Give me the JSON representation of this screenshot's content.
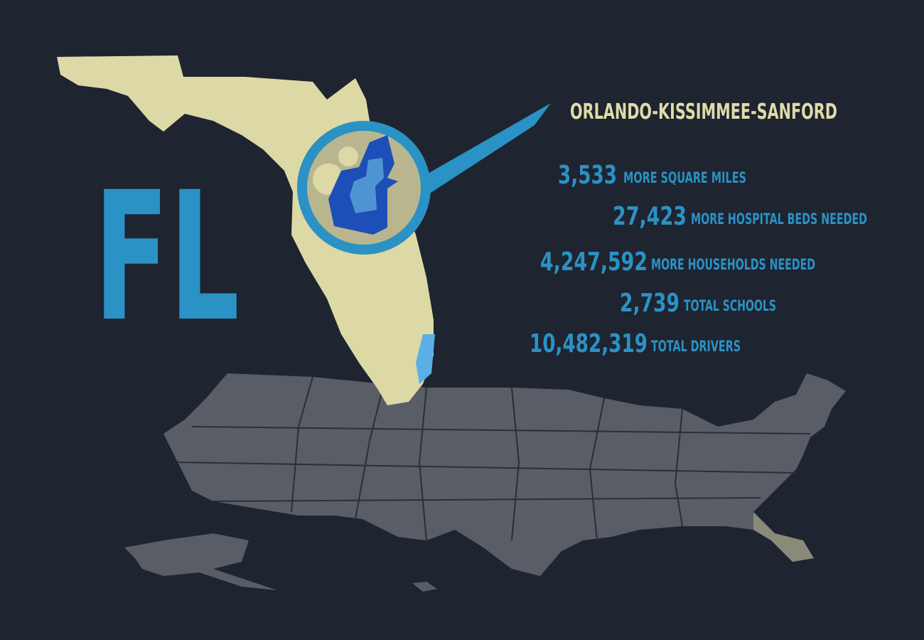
{
  "state": "FL",
  "region": {
    "title": "ORLANDO-KISSIMMEE-SANFORD"
  },
  "stats": [
    {
      "number": "3,533",
      "label": "MORE SQUARE MILES"
    },
    {
      "number": "27,423",
      "label": "MORE HOSPITAL BEDS NEEDED"
    },
    {
      "number": "4,247,592",
      "label": "MORE HOUSEHOLDS NEEDED"
    },
    {
      "number": "2,739",
      "label": "TOTAL SCHOOLS"
    },
    {
      "number": "10,482,319",
      "label": "TOTAL DRIVERS"
    }
  ]
}
